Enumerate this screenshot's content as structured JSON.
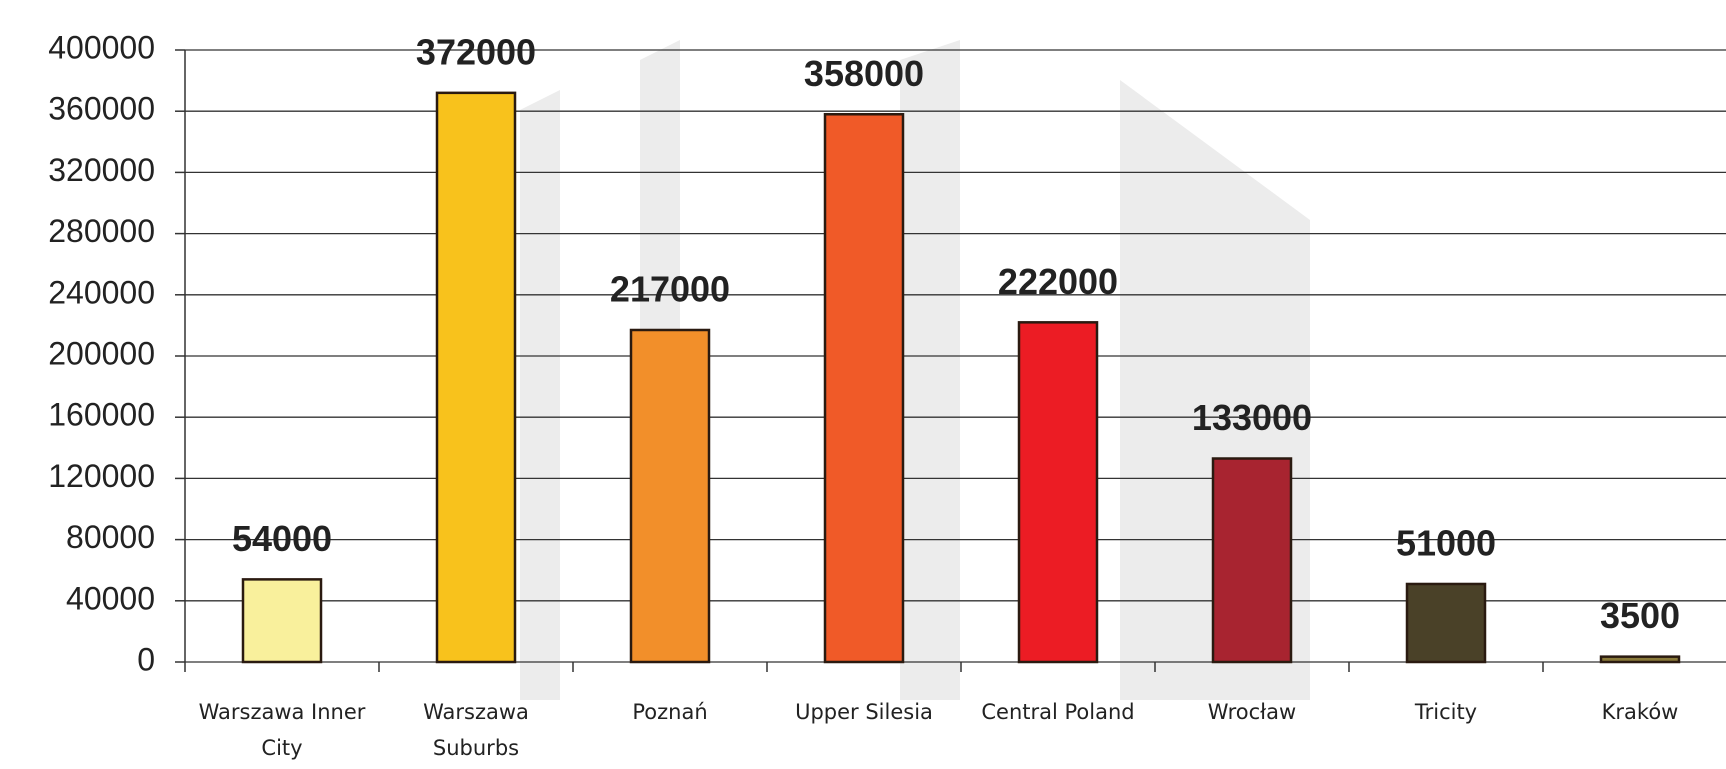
{
  "chart_data": {
    "type": "bar",
    "categories": [
      "Warszawa Inner City",
      "Warszawa Suburbs",
      "Poznań",
      "Upper Silesia",
      "Central Poland",
      "Wrocław",
      "Tricity",
      "Kraków"
    ],
    "values": [
      54000,
      372000,
      217000,
      358000,
      222000,
      133000,
      51000,
      3500
    ],
    "colors": [
      "#f9f09c",
      "#f8c21c",
      "#f28f2a",
      "#f05a28",
      "#ec1c24",
      "#a82430",
      "#4a4128",
      "#8a7a3a"
    ],
    "ylim": [
      0,
      400000
    ],
    "yticks": [
      0,
      40000,
      80000,
      120000,
      160000,
      200000,
      240000,
      280000,
      320000,
      360000,
      400000
    ],
    "grid": true
  }
}
